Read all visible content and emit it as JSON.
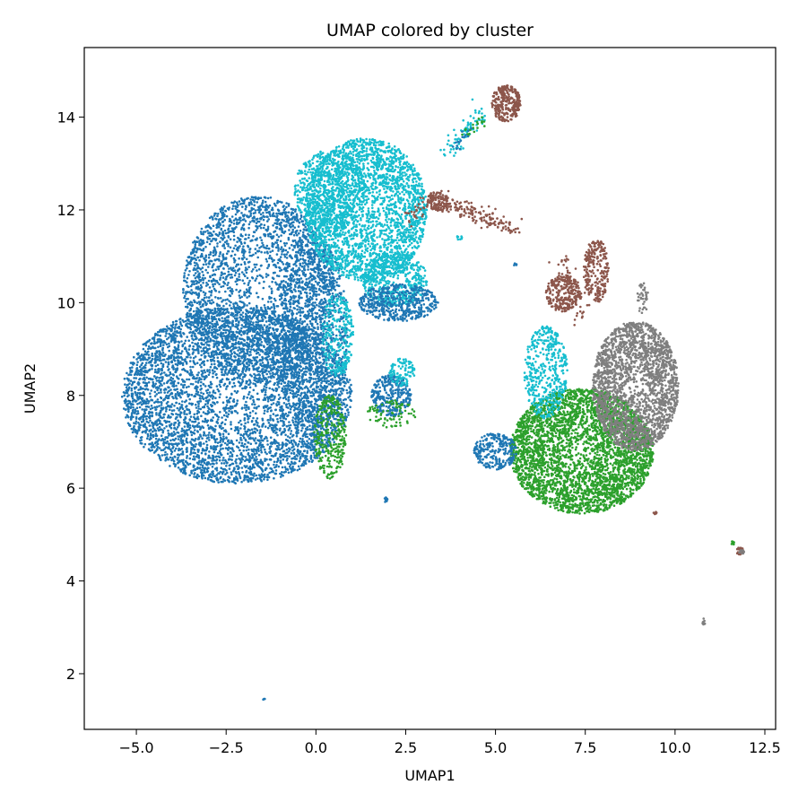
{
  "chart_data": {
    "type": "scatter",
    "title": "UMAP colored by cluster",
    "xlabel": "UMAP1",
    "ylabel": "UMAP2",
    "xlim": [
      -6.45,
      12.8
    ],
    "ylim": [
      0.8,
      15.5
    ],
    "xticks": [
      {
        "value": -5.0,
        "label": "−5.0"
      },
      {
        "value": -2.5,
        "label": "−2.5"
      },
      {
        "value": 0.0,
        "label": "0.0"
      },
      {
        "value": 2.5,
        "label": "2.5"
      },
      {
        "value": 5.0,
        "label": "5.0"
      },
      {
        "value": 7.5,
        "label": "7.5"
      },
      {
        "value": 10.0,
        "label": "10.0"
      },
      {
        "value": 12.5,
        "label": "12.5"
      }
    ],
    "yticks": [
      {
        "value": 2,
        "label": "2"
      },
      {
        "value": 4,
        "label": "4"
      },
      {
        "value": 6,
        "label": "6"
      },
      {
        "value": 8,
        "label": "8"
      },
      {
        "value": 10,
        "label": "10"
      },
      {
        "value": 12,
        "label": "12"
      },
      {
        "value": 14,
        "label": "14"
      }
    ],
    "grid": false,
    "legend": "none",
    "colors": {
      "blue": "#1f77b4",
      "cyan": "#17becf",
      "green": "#2ca02c",
      "brown": "#8c564b",
      "gray": "#7f7f7f"
    },
    "regions": [
      {
        "color": "blue",
        "shape": "ellipse",
        "cx": -2.2,
        "cy": 8.0,
        "rx": 3.2,
        "ry": 1.9,
        "n": 4500
      },
      {
        "color": "blue",
        "shape": "ellipse",
        "cx": -1.6,
        "cy": 10.3,
        "rx": 2.1,
        "ry": 2.0,
        "n": 2600
      },
      {
        "color": "blue",
        "shape": "ellipse",
        "cx": -0.1,
        "cy": 9.3,
        "rx": 1.0,
        "ry": 2.2,
        "n": 900
      },
      {
        "color": "cyan",
        "shape": "ellipse",
        "cx": 1.4,
        "cy": 12.0,
        "rx": 1.7,
        "ry": 1.55,
        "n": 2600
      },
      {
        "color": "cyan",
        "shape": "ellipse",
        "cx": 0.4,
        "cy": 12.4,
        "rx": 1.0,
        "ry": 0.9,
        "n": 600
      },
      {
        "color": "cyan",
        "shape": "ellipse",
        "cx": 2.2,
        "cy": 10.5,
        "rx": 0.9,
        "ry": 0.6,
        "n": 500
      },
      {
        "color": "cyan",
        "shape": "ellipse",
        "cx": 0.6,
        "cy": 9.3,
        "rx": 0.45,
        "ry": 0.9,
        "n": 250
      },
      {
        "color": "blue",
        "shape": "ellipse",
        "cx": 2.3,
        "cy": 10.0,
        "rx": 1.1,
        "ry": 0.4,
        "n": 450
      },
      {
        "color": "green",
        "shape": "ellipse",
        "cx": 0.4,
        "cy": 7.1,
        "rx": 0.45,
        "ry": 0.9,
        "n": 300
      },
      {
        "color": "blue",
        "shape": "ellipse",
        "cx": 2.1,
        "cy": 8.0,
        "rx": 0.55,
        "ry": 0.45,
        "n": 300
      },
      {
        "color": "cyan",
        "shape": "ellipse",
        "cx": 2.4,
        "cy": 8.5,
        "rx": 0.35,
        "ry": 0.3,
        "n": 100
      },
      {
        "color": "green",
        "shape": "ellipse",
        "cx": 2.1,
        "cy": 7.6,
        "rx": 0.7,
        "ry": 0.3,
        "n": 80
      },
      {
        "color": "green",
        "shape": "ellipse",
        "cx": 7.4,
        "cy": 6.8,
        "rx": 2.0,
        "ry": 1.35,
        "n": 3600
      },
      {
        "color": "gray",
        "shape": "ellipse",
        "cx": 8.9,
        "cy": 8.2,
        "rx": 1.2,
        "ry": 1.4,
        "n": 2200
      },
      {
        "color": "blue",
        "shape": "ellipse",
        "cx": 5.0,
        "cy": 6.8,
        "rx": 0.6,
        "ry": 0.4,
        "n": 250
      },
      {
        "color": "cyan",
        "shape": "ellipse",
        "cx": 6.4,
        "cy": 8.5,
        "rx": 0.6,
        "ry": 1.0,
        "n": 450
      },
      {
        "color": "brown",
        "shape": "ellipse",
        "cx": 6.9,
        "cy": 10.2,
        "rx": 0.5,
        "ry": 0.4,
        "n": 250
      },
      {
        "color": "brown",
        "shape": "ellipse",
        "cx": 7.8,
        "cy": 10.7,
        "rx": 0.35,
        "ry": 0.7,
        "n": 250
      },
      {
        "color": "brown",
        "shape": "ellipse",
        "cx": 5.3,
        "cy": 14.3,
        "rx": 0.4,
        "ry": 0.4,
        "n": 280
      },
      {
        "color": "brown",
        "shape": "ellipse",
        "cx": 3.4,
        "cy": 12.2,
        "rx": 0.3,
        "ry": 0.22,
        "n": 90
      },
      {
        "color": "brown",
        "shape": "segment",
        "from": [
          3.3,
          12.2
        ],
        "to": [
          5.6,
          11.6
        ],
        "width": 0.1,
        "n": 160
      },
      {
        "color": "brown",
        "shape": "segment",
        "from": [
          2.6,
          11.8
        ],
        "to": [
          3.3,
          12.3
        ],
        "width": 0.08,
        "n": 40
      },
      {
        "color": "cyan",
        "shape": "segment",
        "from": [
          3.6,
          13.2
        ],
        "to": [
          4.7,
          14.2
        ],
        "width": 0.12,
        "n": 80
      },
      {
        "color": "green",
        "shape": "segment",
        "from": [
          4.1,
          13.6
        ],
        "to": [
          4.9,
          14.1
        ],
        "width": 0.05,
        "n": 20
      },
      {
        "color": "blue",
        "shape": "segment",
        "from": [
          3.9,
          13.3
        ],
        "to": [
          4.3,
          13.7
        ],
        "width": 0.06,
        "n": 15
      },
      {
        "color": "brown",
        "shape": "segment",
        "from": [
          6.8,
          11.0
        ],
        "to": [
          7.4,
          9.6
        ],
        "width": 0.12,
        "n": 60
      },
      {
        "color": "gray",
        "shape": "ellipse",
        "cx": 9.1,
        "cy": 10.1,
        "rx": 0.15,
        "ry": 0.35,
        "n": 40
      },
      {
        "color": "brown",
        "shape": "ellipse",
        "cx": 11.8,
        "cy": 4.65,
        "rx": 0.1,
        "ry": 0.08,
        "n": 25
      },
      {
        "color": "gray",
        "shape": "ellipse",
        "cx": 11.85,
        "cy": 4.62,
        "rx": 0.07,
        "ry": 0.05,
        "n": 10
      },
      {
        "color": "green",
        "shape": "ellipse",
        "cx": 11.6,
        "cy": 4.82,
        "rx": 0.05,
        "ry": 0.04,
        "n": 8
      },
      {
        "color": "gray",
        "shape": "ellipse",
        "cx": 10.8,
        "cy": 3.12,
        "rx": 0.04,
        "ry": 0.08,
        "n": 10
      },
      {
        "color": "blue",
        "shape": "ellipse",
        "cx": 1.95,
        "cy": 5.75,
        "rx": 0.06,
        "ry": 0.05,
        "n": 10
      },
      {
        "color": "brown",
        "shape": "ellipse",
        "cx": 9.45,
        "cy": 5.47,
        "rx": 0.05,
        "ry": 0.03,
        "n": 6
      },
      {
        "color": "blue",
        "shape": "ellipse",
        "cx": -1.45,
        "cy": 1.45,
        "rx": 0.03,
        "ry": 0.02,
        "n": 3
      },
      {
        "color": "blue",
        "shape": "ellipse",
        "cx": 5.55,
        "cy": 10.83,
        "rx": 0.05,
        "ry": 0.03,
        "n": 5
      },
      {
        "color": "cyan",
        "shape": "ellipse",
        "cx": 4.0,
        "cy": 11.4,
        "rx": 0.1,
        "ry": 0.05,
        "n": 8
      }
    ]
  }
}
